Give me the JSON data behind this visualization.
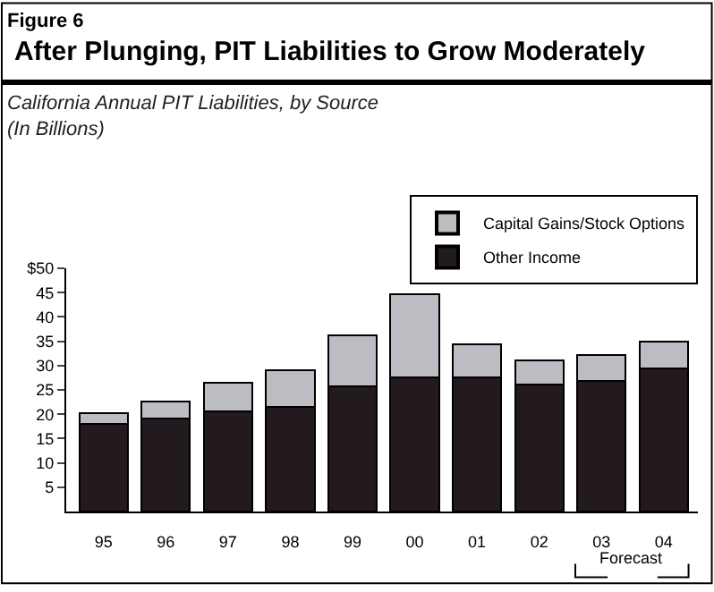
{
  "chart_data": {
    "type": "bar",
    "title": "After Plunging, PIT Liabilities to Grow Moderately",
    "subtitle": "California Annual PIT Liabilities, by Source\n(In Billions)",
    "annotations": [
      "Figure 6",
      "Forecast"
    ],
    "categories": [
      "95",
      "96",
      "97",
      "98",
      "99",
      "00",
      "01",
      "02",
      "03",
      "04"
    ],
    "stacked": true,
    "series": [
      {
        "name": "Other Income",
        "color": "#231a20",
        "values": [
          18,
          19.2,
          20.6,
          21.5,
          25.8,
          27.6,
          27.6,
          26.1,
          26.9,
          29.4
        ]
      },
      {
        "name": "Capital Gains/Stock Options",
        "color": "#bcbcc2",
        "values": [
          2.3,
          3.4,
          5.8,
          7.5,
          10.4,
          17.1,
          6.8,
          5.0,
          5.2,
          5.6
        ]
      }
    ],
    "ylim": [
      0,
      50
    ],
    "yticks": [
      5,
      10,
      15,
      20,
      25,
      30,
      35,
      40,
      45,
      {
        "value": 50,
        "label": "$50"
      }
    ],
    "legend": "top right"
  }
}
